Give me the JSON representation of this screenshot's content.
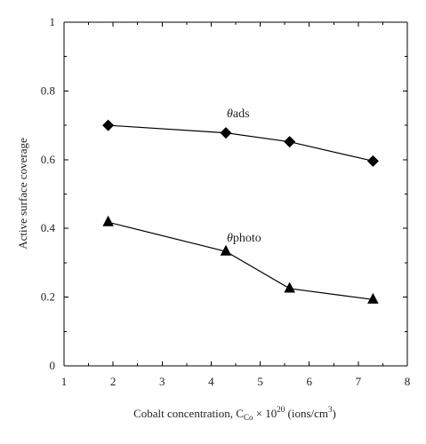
{
  "chart_data": {
    "type": "line",
    "title": "",
    "xlabel": {
      "prefix": "Cobalt concentration, C",
      "sub": "Co",
      "mid": " × 10",
      "sup": "20",
      "unit_prefix": " (ions/cm",
      "unit_sup": "3",
      "unit_suffix": ")"
    },
    "ylabel": "Active surface coverage",
    "xlim": [
      1,
      8
    ],
    "ylim": [
      0,
      1
    ],
    "xticks": [
      1,
      2,
      3,
      4,
      5,
      6,
      7,
      8
    ],
    "yticks": [
      0,
      0.2,
      0.4,
      0.6,
      0.8,
      1
    ],
    "ytick_labels": [
      "0",
      "0.2",
      "0.4",
      "0.6",
      "0.8",
      "1"
    ],
    "grid": false,
    "series": [
      {
        "name_symbol": "θ",
        "name_text": "ads",
        "marker": "diamond",
        "x": [
          1.9,
          4.3,
          5.6,
          7.3
        ],
        "y": [
          0.7,
          0.678,
          0.652,
          0.596
        ]
      },
      {
        "name_symbol": "θ",
        "name_text": "photo",
        "marker": "triangle",
        "x": [
          1.9,
          4.3,
          5.6,
          7.3
        ],
        "y": [
          0.418,
          0.333,
          0.225,
          0.193
        ]
      }
    ],
    "colors": {
      "line": "#000000",
      "marker": "#000000",
      "background": "#ffffff"
    }
  }
}
